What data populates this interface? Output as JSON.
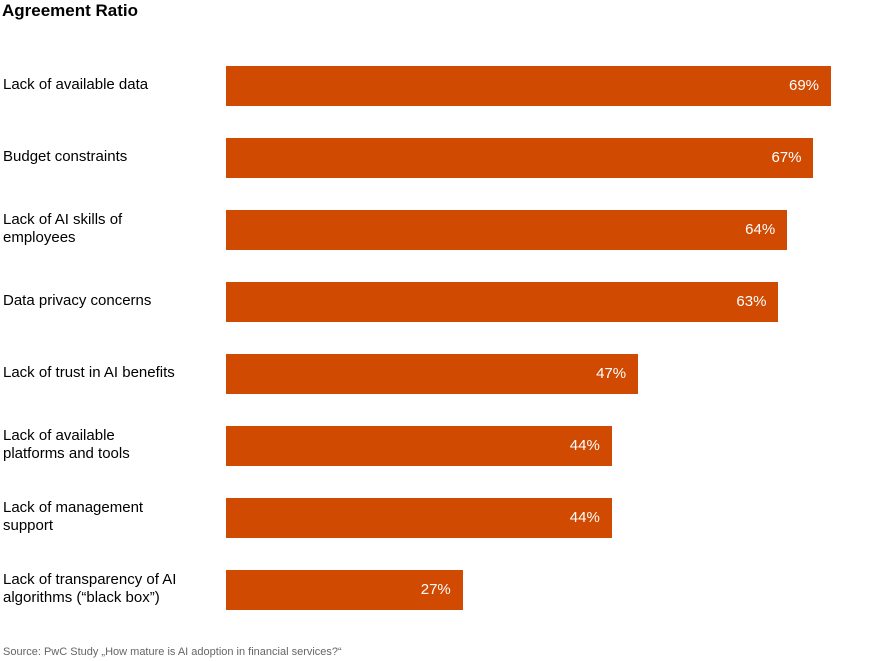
{
  "chart_data": {
    "type": "bar",
    "orientation": "horizontal",
    "title": "Agreement Ratio",
    "xlabel": "",
    "ylabel": "",
    "xlim": [
      0,
      100
    ],
    "grid": false,
    "bar_color": "#D04A02",
    "label_color": "#ffffff",
    "categories": [
      "Lack of available data",
      "Budget constraints",
      "Lack of AI skills of employees",
      "Data privacy concerns",
      "Lack of trust in AI benefits",
      "Lack of available platforms and tools",
      "Lack of management support",
      "Lack of transparency of AI algorithms (“black box”)"
    ],
    "values": [
      69,
      67,
      64,
      63,
      47,
      44,
      44,
      27
    ],
    "value_labels": [
      "69%",
      "67%",
      "64%",
      "63%",
      "47%",
      "44%",
      "44%",
      "27%"
    ],
    "source": "Source: PwC Study „How mature is AI adoption in financial services?“"
  }
}
